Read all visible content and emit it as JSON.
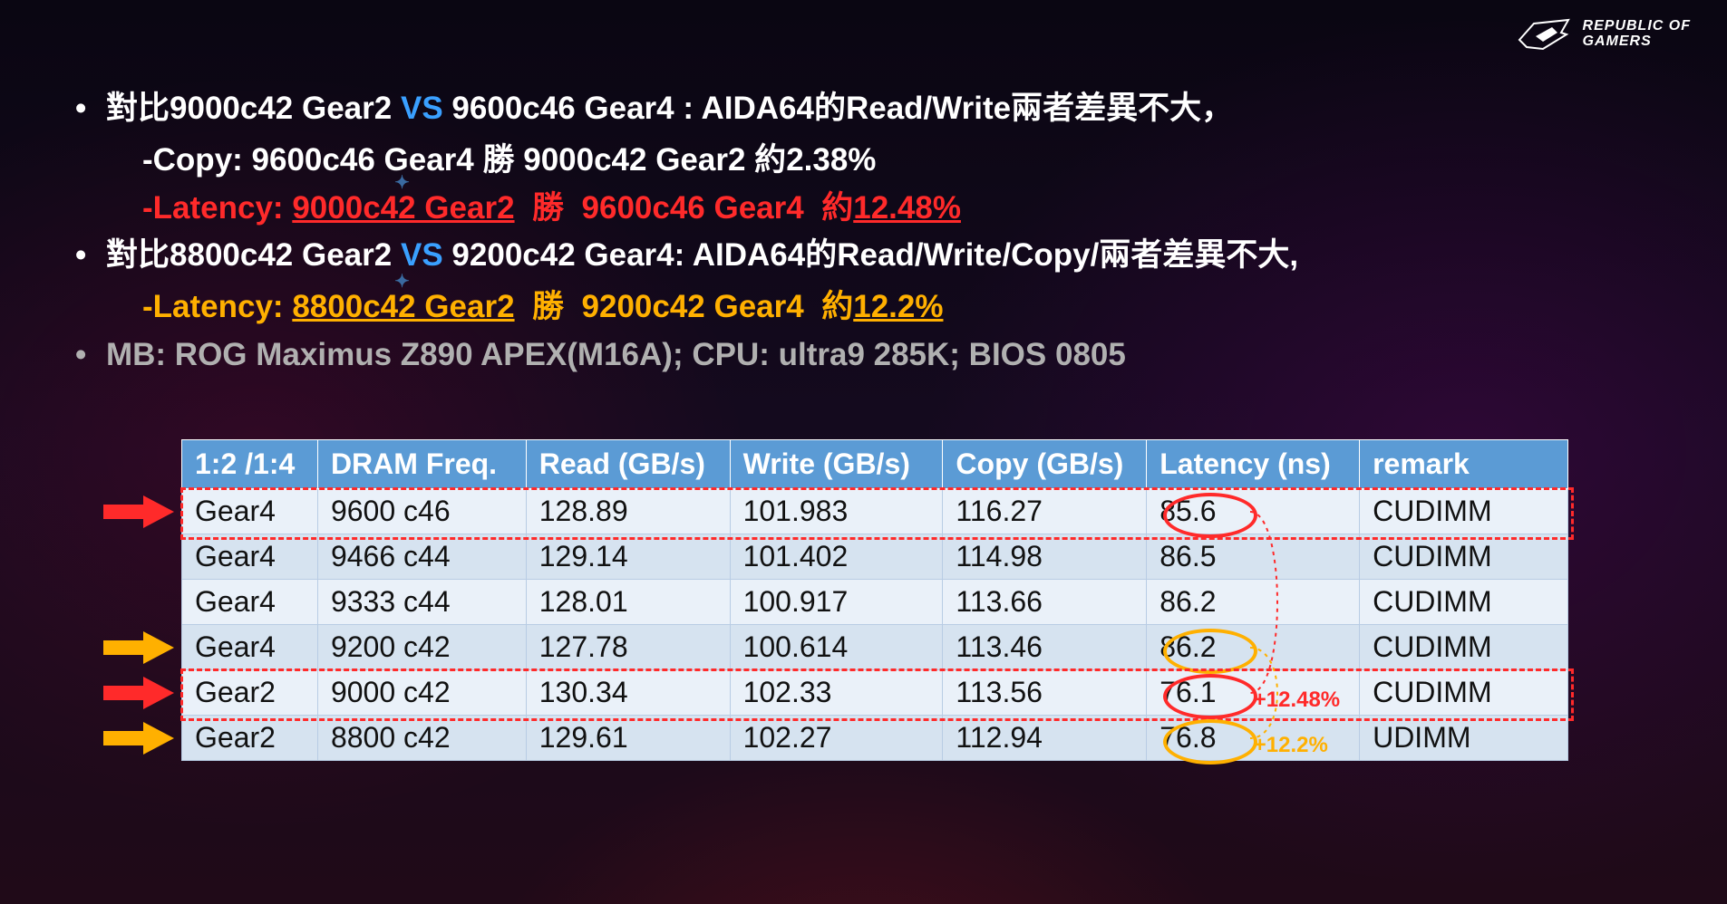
{
  "logo": {
    "line1": "REPUBLIC OF",
    "line2": "GAMERS"
  },
  "bullets": {
    "b1": {
      "pre": "對比",
      "a": "9000c42 Gear2",
      "vs": "VS",
      "b": "9600c46 Gear4 : AIDA64",
      "mid": "的",
      "c": "Read/Write",
      "tail": "兩者差異不大，",
      "sub1_pre": "-Copy: 9600c46 Gear4 ",
      "sub1_mid": "勝",
      "sub1_b": " 9000c42 Gear2 ",
      "sub1_tail": "約",
      "sub1_pct": "2.38%",
      "sub2_label": "-Latency:",
      "sub2_a": "9000c42 Gear2",
      "sub2_mid": "勝",
      "sub2_b": "9600c46 Gear4",
      "sub2_tail": "約",
      "sub2_pct": "12.48%"
    },
    "b2": {
      "pre": "對比",
      "a": "8800c42 Gear2",
      "vs": "VS",
      "b": "9200c42 Gear4: AIDA64",
      "mid": "的",
      "c": "Read/Write/Copy/",
      "tail": "兩者差異不大,",
      "sub1_label": "-Latency:",
      "sub1_a": "8800c42 Gear2",
      "sub1_mid": "勝",
      "sub1_b": "9200c42 Gear4",
      "sub1_tail": "約",
      "sub1_pct": "12.2%"
    },
    "b3": "MB: ROG Maximus Z890 APEX(M16A); CPU: ultra9 285K; BIOS 0805"
  },
  "table": {
    "headers": [
      "1:2 /1:4",
      "DRAM Freq.",
      "Read (GB/s)",
      "Write (GB/s)",
      "Copy (GB/s)",
      "Latency (ns)",
      "remark"
    ],
    "rows": [
      {
        "gear": "Gear4",
        "freq": "9600 c46",
        "read": "128.89",
        "write": "101.983",
        "copy": "116.27",
        "lat": "85.6",
        "rem": "CUDIMM",
        "hl": "red",
        "arrow": "red",
        "circ": "red"
      },
      {
        "gear": "Gear4",
        "freq": "9466 c44",
        "read": "129.14",
        "write": "101.402",
        "copy": "114.98",
        "lat": "86.5",
        "rem": "CUDIMM"
      },
      {
        "gear": "Gear4",
        "freq": "9333 c44",
        "read": "128.01",
        "write": "100.917",
        "copy": "113.66",
        "lat": "86.2",
        "rem": "CUDIMM"
      },
      {
        "gear": "Gear4",
        "freq": "9200 c42",
        "read": "127.78",
        "write": "100.614",
        "copy": "113.46",
        "lat": "86.2",
        "rem": "CUDIMM",
        "arrow": "or",
        "circ": "or"
      },
      {
        "gear": "Gear2",
        "freq": "9000 c42",
        "read": "130.34",
        "write": "102.33",
        "copy": "113.56",
        "lat": "76.1",
        "rem": "CUDIMM",
        "hl": "red",
        "arrow": "red",
        "circ": "red",
        "pct": "+12.48%",
        "pctc": "red"
      },
      {
        "gear": "Gear2",
        "freq": "8800 c42",
        "read": "129.61",
        "write": "102.27",
        "copy": "112.94",
        "lat": "76.8",
        "rem": "UDIMM",
        "arrow": "or",
        "circ": "or",
        "pct": "+12.2%",
        "pctc": "or"
      }
    ],
    "header_bg": "#5b9bd5",
    "odd_bg": "#eaf1f9",
    "even_bg": "#d6e3f0",
    "red": "#ff2a2a",
    "orange": "#ffb000"
  }
}
